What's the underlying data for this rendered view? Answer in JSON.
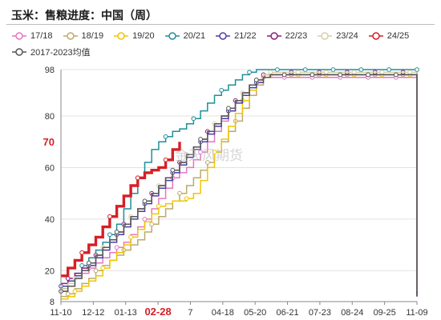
{
  "title": "玉米：售粮进度：中国（周）",
  "watermark": "金天风期货",
  "chart_data": {
    "type": "line",
    "xlabel": "",
    "ylabel": "",
    "ylim": [
      8,
      98
    ],
    "y_ticks": [
      8,
      20,
      40,
      60,
      80,
      98
    ],
    "x_ticks": [
      "11-10",
      "12-12",
      "01-13",
      "02-28",
      "7",
      "04-18",
      "05-20",
      "06-21",
      "07-23",
      "08-24",
      "09-25",
      "11-09"
    ],
    "x_ticks_highlighted": [
      "02-28"
    ],
    "y_highlight": 70,
    "y_highlight_label": "70",
    "grid": "horizontal",
    "legend_position": "top",
    "series": [
      {
        "name": "17/18",
        "color": "#e377c2",
        "values": [
          12,
          14,
          17,
          19,
          21,
          23,
          25,
          27,
          29,
          31,
          34,
          37,
          40,
          44,
          48,
          52,
          56,
          58,
          60,
          63,
          66,
          70,
          74,
          78,
          82,
          86,
          89,
          92,
          94,
          95,
          95,
          95,
          95,
          95,
          95,
          95,
          95,
          95,
          95,
          95,
          95,
          95,
          95,
          95,
          95,
          95,
          95,
          95,
          95,
          95,
          95,
          95
        ]
      },
      {
        "name": "18/19",
        "color": "#bcaa6a",
        "values": [
          10,
          11,
          13,
          15,
          17,
          20,
          22,
          24,
          26,
          28,
          30,
          32,
          35,
          38,
          41,
          44,
          47,
          50,
          53,
          56,
          59,
          62,
          66,
          70,
          74,
          78,
          83,
          88,
          92,
          95,
          96,
          96,
          96,
          96,
          96,
          96,
          96,
          96,
          96,
          96,
          96,
          96,
          96,
          96,
          96,
          96,
          96,
          96,
          96,
          96,
          96,
          96
        ]
      },
      {
        "name": "19/20",
        "color": "#f2c500",
        "values": [
          9,
          10,
          12,
          14,
          16,
          18,
          21,
          24,
          27,
          30,
          33,
          36,
          39,
          42,
          45,
          46,
          47,
          47,
          48,
          50,
          55,
          60,
          66,
          71,
          76,
          81,
          86,
          90,
          93,
          95,
          96,
          96,
          96,
          96,
          96,
          96,
          96,
          96,
          96,
          96,
          96,
          96,
          96,
          96,
          96,
          96,
          96,
          96,
          96,
          96,
          96,
          96
        ]
      },
      {
        "name": "20/21",
        "color": "#1f8f99",
        "values": [
          13,
          16,
          19,
          22,
          25,
          28,
          31,
          34,
          38,
          44,
          50,
          56,
          62,
          67,
          70,
          72,
          74,
          75,
          77,
          79,
          82,
          85,
          88,
          90,
          92,
          94,
          96,
          97,
          98,
          98,
          98,
          98,
          98,
          98,
          98,
          98,
          98,
          98,
          98,
          98,
          98,
          98,
          98,
          98,
          98,
          98,
          98,
          98,
          98,
          98,
          98,
          98
        ]
      },
      {
        "name": "21/22",
        "color": "#4b3fa8",
        "values": [
          14,
          16,
          18,
          20,
          22,
          25,
          28,
          31,
          34,
          37,
          40,
          43,
          46,
          49,
          52,
          55,
          58,
          61,
          64,
          67,
          70,
          73,
          76,
          79,
          82,
          85,
          88,
          91,
          93,
          95,
          96,
          96,
          96,
          96,
          96,
          96,
          96,
          96,
          96,
          96,
          96,
          96,
          96,
          96,
          96,
          96,
          96,
          96,
          96,
          96,
          96,
          96
        ]
      },
      {
        "name": "22/23",
        "color": "#8b1c7d",
        "values": [
          15,
          17,
          19,
          21,
          23,
          26,
          29,
          32,
          35,
          38,
          41,
          44,
          47,
          50,
          53,
          56,
          59,
          62,
          65,
          68,
          71,
          74,
          77,
          80,
          83,
          86,
          89,
          92,
          94,
          96,
          97,
          97,
          97,
          97,
          97,
          97,
          97,
          97,
          97,
          97,
          97,
          97,
          97,
          97,
          97,
          97,
          97,
          97,
          97,
          97,
          97,
          97
        ]
      },
      {
        "name": "23/24",
        "color": "#d6d0a8",
        "values": [
          13,
          15,
          17,
          20,
          23,
          26,
          29,
          32,
          35,
          38,
          41,
          44,
          47,
          50,
          53,
          56,
          59,
          62,
          65,
          68,
          71,
          74,
          77,
          80,
          83,
          86,
          89,
          92,
          94,
          96,
          97,
          97,
          97,
          97,
          97,
          97,
          97,
          97,
          97,
          97,
          97,
          97,
          97,
          97,
          97,
          97,
          97,
          97,
          97,
          97,
          97,
          97
        ]
      },
      {
        "name": "24/25",
        "color": "#d61f26",
        "values": [
          18,
          21,
          24,
          27,
          30,
          33,
          37,
          41,
          45,
          49,
          53,
          56,
          58,
          59,
          60,
          63,
          67,
          70
        ]
      },
      {
        "name": "2017-2023均值",
        "color": "#555555",
        "values": [
          12,
          14,
          17,
          20,
          23,
          26,
          29,
          32,
          35,
          38,
          41,
          44,
          47,
          50,
          53,
          56,
          59,
          62,
          65,
          68,
          71,
          74,
          77,
          80,
          83,
          86,
          89,
          92,
          94,
          95,
          96,
          96,
          96,
          96,
          96,
          96,
          96,
          96,
          96,
          96,
          96,
          96,
          96,
          96,
          96,
          96,
          96,
          96,
          96,
          96,
          96,
          96
        ]
      }
    ]
  }
}
